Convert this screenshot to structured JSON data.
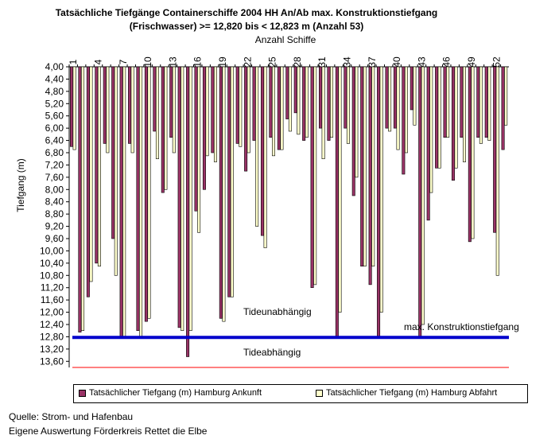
{
  "title_line1": "Tatsächliche Tiefgänge Containerschiffe 2004 HH An/Ab max. Konstruktionstiefgang",
  "title_line2": "(Frischwasser) >= 12,820 bis < 12,823 m (Anzahl 53)",
  "footer_line1": "Quelle: Strom- und Hafenbau",
  "footer_line2": "Eigene Auswertung Förderkreis Rettet die Elbe",
  "colors": {
    "arrival": "#993366",
    "departure": "#ffffcc",
    "max_line": "#0000cc",
    "tide_line": "#ff0000"
  },
  "chart_data": {
    "type": "bar",
    "title": "Tatsächliche Tiefgänge Containerschiffe 2004 HH An/Ab max. Konstruktionstiefgang (Frischwasser) >= 12,820 bis < 12,823 m (Anzahl 53)",
    "xlabel": "Anzahl Schiffe",
    "ylabel": "Tiefgang (m)",
    "ylim": [
      4.0,
      13.8
    ],
    "y_inverted": true,
    "grid": false,
    "legend_position": "bottom",
    "x_tick_labels": [
      "1",
      "4",
      "7",
      "10",
      "13",
      "16",
      "19",
      "22",
      "25",
      "28",
      "31",
      "34",
      "37",
      "40",
      "43",
      "46",
      "49",
      "52"
    ],
    "y_tick_labels": [
      "4,00",
      "4,40",
      "4,80",
      "5,20",
      "5,60",
      "6,00",
      "6,40",
      "6,80",
      "7,20",
      "7,60",
      "8,00",
      "8,40",
      "8,80",
      "9,20",
      "9,60",
      "10,00",
      "10,40",
      "10,80",
      "11,20",
      "11,60",
      "12,00",
      "12,40",
      "12,80",
      "13,20",
      "13,60"
    ],
    "categories": [
      1,
      2,
      3,
      4,
      5,
      6,
      7,
      8,
      9,
      10,
      11,
      12,
      13,
      14,
      15,
      16,
      17,
      18,
      19,
      20,
      21,
      22,
      23,
      24,
      25,
      26,
      27,
      28,
      29,
      30,
      31,
      32,
      33,
      34,
      35,
      36,
      37,
      38,
      39,
      40,
      41,
      42,
      43,
      44,
      45,
      46,
      47,
      48,
      49,
      50,
      51,
      52,
      53
    ],
    "series": [
      {
        "name": "Tatsächlicher Tiefgang (m) Hamburg Ankunft",
        "values": [
          6.6,
          12.65,
          11.5,
          10.4,
          6.5,
          9.6,
          12.8,
          6.5,
          12.6,
          12.3,
          6.1,
          8.1,
          6.3,
          12.5,
          13.45,
          8.7,
          8.0,
          6.8,
          12.2,
          11.5,
          6.5,
          7.4,
          6.4,
          9.5,
          6.3,
          6.7,
          5.7,
          5.5,
          6.4,
          11.2,
          6.0,
          6.4,
          12.8,
          6.0,
          8.2,
          10.5,
          11.1,
          12.8,
          6.0,
          6.0,
          7.5,
          5.4,
          12.8,
          9.0,
          7.3,
          6.3,
          7.7,
          6.3,
          9.7,
          6.3,
          6.3,
          9.4,
          6.7
        ]
      },
      {
        "name": "Tatsächlicher Tiefgang (m) Hamburg Abfahrt",
        "values": [
          6.7,
          12.6,
          11.0,
          10.5,
          6.8,
          10.8,
          12.8,
          6.8,
          12.8,
          12.2,
          7.0,
          8.0,
          6.8,
          12.6,
          12.6,
          9.4,
          6.9,
          7.1,
          12.3,
          11.5,
          6.6,
          6.8,
          9.2,
          9.9,
          6.9,
          6.7,
          6.1,
          6.2,
          6.3,
          11.1,
          7.0,
          6.3,
          12.0,
          6.5,
          7.6,
          10.5,
          10.5,
          12.0,
          6.1,
          6.7,
          6.8,
          5.9,
          12.4,
          8.1,
          7.3,
          6.3,
          7.3,
          7.1,
          9.6,
          6.5,
          6.4,
          10.8,
          5.9
        ]
      }
    ],
    "reference_lines": [
      {
        "label": "max. Konstruktionstiefgang",
        "y": 12.82
      },
      {
        "label": "",
        "y": 13.8
      }
    ],
    "annotations": [
      "Tideunabhängig",
      "Tideabhängig"
    ]
  }
}
